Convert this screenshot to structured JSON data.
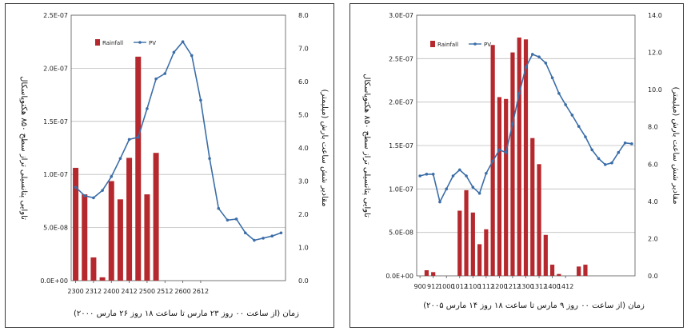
{
  "chart_data": [
    {
      "type": "bar",
      "legend": {
        "placement": "top-left",
        "bar_label": "Rainfall",
        "line_label": "PV"
      },
      "y_left": {
        "label": "تاوایی پتانسیلی تراز سطح ۸۵۰ هکتوپاسکال",
        "range": [
          0,
          2.5e-07
        ],
        "ticks": [
          "0.0E+00",
          "5.0E-08",
          "1.0E-07",
          "1.5E-07",
          "2.0E-07",
          "2.5E-07"
        ]
      },
      "y_right": {
        "label": "مقادیر شش ساعت بارش (میلیمتر)",
        "range": [
          0,
          8
        ],
        "ticks": [
          "0.0",
          "1.0",
          "2.0",
          "3.0",
          "4.0",
          "5.0",
          "6.0",
          "7.0",
          "8.0"
        ]
      },
      "xlabel": "زمان (از ساعت ۰۰ روز ۲۳ مارس تا ساعت ۱۸ روز ۲۶ مارس ۲۰۰۰)",
      "x_tick_labels": [
        "2300",
        "2312",
        "2400",
        "2412",
        "2500",
        "2512",
        "2600",
        "2612"
      ],
      "rainfall": [
        3.4,
        2.6,
        0.7,
        0.1,
        3.0,
        2.45,
        3.7,
        6.75,
        2.6,
        3.85
      ],
      "pv": [
        8.8e-08,
        8e-08,
        7.8e-08,
        8.5e-08,
        9.8e-08,
        1.15e-07,
        1.33e-07,
        1.35e-07,
        1.62e-07,
        1.9e-07,
        1.95e-07,
        2.15e-07,
        2.25e-07,
        2.12e-07,
        1.7e-07,
        1.15e-07,
        6.8e-08,
        5.7e-08,
        5.8e-08,
        4.5e-08,
        3.8e-08,
        4e-08,
        4.2e-08,
        4.5e-08
      ],
      "colors": {
        "bar": "#b5282d",
        "line": "#3b6ea8",
        "grid": "#bdbdbd"
      },
      "grid": true
    },
    {
      "type": "bar",
      "legend": {
        "placement": "top-left",
        "bar_label": "Rainfall",
        "line_label": "PV"
      },
      "y_left": {
        "label": "تاوایی پتانسیلی تراز سطح ۸۵۰ هکتوپاسکال",
        "range": [
          0,
          3e-07
        ],
        "ticks": [
          "0.0E+00",
          "5.0E-08",
          "1.0E-07",
          "1.5E-07",
          "2.0E-07",
          "2.5E-07",
          "3.0E-07"
        ]
      },
      "y_right": {
        "label": "مقادیر شش ساعت بارش (میلیمتر)",
        "range": [
          0,
          14
        ],
        "ticks": [
          "0.0",
          "2.0",
          "4.0",
          "6.0",
          "8.0",
          "10.0",
          "12.0",
          "14.0"
        ]
      },
      "xlabel": "زمان (از ساعت ۰۰ روز ۹ مارس تا ساعت ۱۸ روز ۱۴ مارس ۲۰۰۵)",
      "x_tick_labels": [
        "900",
        "912",
        "1000",
        "1012",
        "1100",
        "1112",
        "1200",
        "1212",
        "1300",
        "1312",
        "1400",
        "1412"
      ],
      "rainfall": [
        0,
        0.3,
        0.2,
        0,
        0,
        0,
        3.5,
        4.6,
        3.4,
        1.7,
        2.5,
        12.4,
        9.6,
        9.5,
        12.0,
        12.8,
        12.7,
        7.4,
        6.0,
        2.2,
        0.6,
        0.1,
        0,
        0,
        0.5,
        0.6,
        0
      ],
      "pv": [
        1.15e-07,
        1.17e-07,
        1.17e-07,
        8.5e-08,
        1e-07,
        1.15e-07,
        1.22e-07,
        1.15e-07,
        1.02e-07,
        9.5e-08,
        1.18e-07,
        1.32e-07,
        1.45e-07,
        1.42e-07,
        1.75e-07,
        2.1e-07,
        2.4e-07,
        2.55e-07,
        2.52e-07,
        2.45e-07,
        2.28e-07,
        2.1e-07,
        1.97e-07,
        1.85e-07,
        1.72e-07,
        1.6e-07,
        1.45e-07,
        1.35e-07,
        1.28e-07,
        1.3e-07,
        1.42e-07,
        1.53e-07,
        1.52e-07
      ],
      "colors": {
        "bar": "#b5282d",
        "line": "#3b6ea8",
        "grid": "#bdbdbd"
      },
      "grid": true
    }
  ]
}
